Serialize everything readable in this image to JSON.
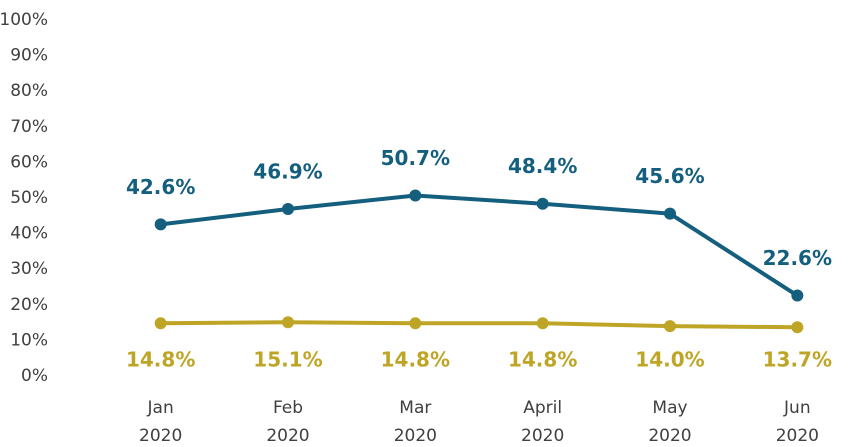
{
  "chart_data": {
    "type": "line",
    "categories": [
      "Jan 2020",
      "Feb 2020",
      "Mar 2020",
      "April 2020",
      "May 2020",
      "Jun 2020"
    ],
    "series": [
      {
        "color": "#145f7e",
        "values": [
          42.6,
          46.9,
          50.7,
          48.4,
          45.6,
          22.6
        ],
        "value_labels": [
          "42.6%",
          "46.9%",
          "50.7%",
          "48.4%",
          "45.6%",
          "22.6%"
        ]
      },
      {
        "color": "#bfa526",
        "values": [
          14.8,
          15.1,
          14.8,
          14.8,
          14.0,
          13.7
        ],
        "value_labels": [
          "14.8%",
          "15.1%",
          "14.8%",
          "14.8%",
          "14.0%",
          "13.7%"
        ]
      }
    ],
    "ylim": [
      0,
      100
    ],
    "yticks": [
      {
        "value": 0,
        "label": "0%"
      },
      {
        "value": 10,
        "label": "10%"
      },
      {
        "value": 20,
        "label": "20%"
      },
      {
        "value": 30,
        "label": "30%"
      },
      {
        "value": 40,
        "label": "40%"
      },
      {
        "value": 50,
        "label": "50%"
      },
      {
        "value": 60,
        "label": "60%"
      },
      {
        "value": 70,
        "label": "70%"
      },
      {
        "value": 80,
        "label": "80%"
      },
      {
        "value": 90,
        "label": "90%"
      },
      {
        "value": 100,
        "label": "100%"
      }
    ],
    "grid": false
  }
}
